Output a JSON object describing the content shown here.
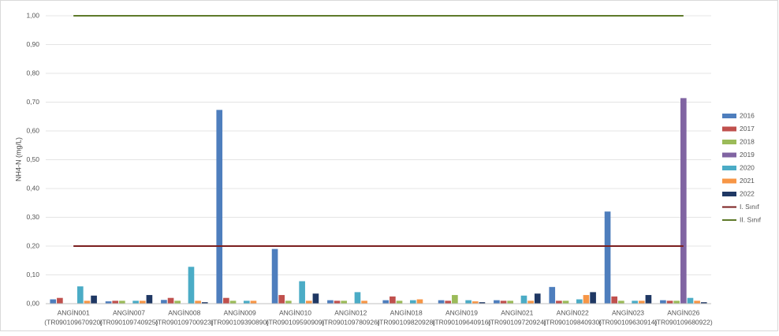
{
  "chart_data": {
    "type": "bar",
    "y_label": "NH4-N (mg/L)",
    "categories": [
      "ANGİN001",
      "ANGİN007",
      "ANGİN008",
      "ANGİN009",
      "ANGİN010",
      "ANGİN012",
      "ANGİN018",
      "ANGİN019",
      "ANGİN021",
      "ANGİN022",
      "ANGİN023",
      "ANGİN026"
    ],
    "category_codes": [
      "(TR090109670920)",
      "(TR090109740925)",
      "(TR090109700923)",
      "(TR090109390890)",
      "(TR090109590909)",
      "(TR090109780926)",
      "(TR090109820928)",
      "(TR090109640916)",
      "(TR090109720924)",
      "(TR090109840930)",
      "(TR090109630914)",
      "(TR090109680922)"
    ],
    "series": [
      {
        "name": "2016",
        "color": "#4e7ebd",
        "values": [
          0.015,
          0.008,
          0.013,
          0.673,
          0.19,
          0.012,
          0.012,
          0.012,
          0.012,
          0.058,
          0.32,
          0.012
        ]
      },
      {
        "name": "2017",
        "color": "#c0504d",
        "values": [
          0.02,
          0.01,
          0.02,
          0.02,
          0.03,
          0.01,
          0.025,
          0.01,
          0.01,
          0.01,
          0.025,
          0.01
        ]
      },
      {
        "name": "2018",
        "color": "#9bbb59",
        "values": [
          null,
          0.01,
          0.01,
          0.01,
          0.01,
          0.01,
          0.01,
          0.03,
          0.01,
          0.01,
          0.01,
          0.01
        ]
      },
      {
        "name": "2019",
        "color": "#8064a2",
        "values": [
          null,
          null,
          null,
          null,
          null,
          null,
          null,
          null,
          null,
          null,
          null,
          0.714
        ]
      },
      {
        "name": "2020",
        "color": "#4bacc6",
        "values": [
          0.06,
          0.01,
          0.128,
          0.01,
          0.078,
          0.04,
          0.012,
          0.012,
          0.028,
          0.015,
          0.01,
          0.02
        ]
      },
      {
        "name": "2021",
        "color": "#f79646",
        "values": [
          0.01,
          0.01,
          0.01,
          0.01,
          0.01,
          0.01,
          0.015,
          0.008,
          0.01,
          0.03,
          0.01,
          0.01
        ]
      },
      {
        "name": "2022",
        "color": "#1f3864",
        "values": [
          0.028,
          0.03,
          0.005,
          null,
          0.035,
          null,
          null,
          0.005,
          0.035,
          0.04,
          0.03,
          0.005
        ]
      }
    ],
    "reference_lines": [
      {
        "name": "I. Sınıf",
        "color": "#7b1f1f",
        "value": 0.2
      },
      {
        "name": "II. Sınıf",
        "color": "#5e7a2a",
        "value": 1.0
      }
    ],
    "ylim": [
      0,
      1.0
    ],
    "yticks": [
      {
        "value": 0,
        "label": "0,00"
      },
      {
        "value": 0.1,
        "label": "0,10"
      },
      {
        "value": 0.2,
        "label": "0,20"
      },
      {
        "value": 0.3,
        "label": "0,30"
      },
      {
        "value": 0.4,
        "label": "0,40"
      },
      {
        "value": 0.5,
        "label": "0,50"
      },
      {
        "value": 0.6,
        "label": "0,60"
      },
      {
        "value": 0.7,
        "label": "0,70"
      },
      {
        "value": 0.8,
        "label": "0,80"
      },
      {
        "value": 0.9,
        "label": "0,90"
      },
      {
        "value": 1.0,
        "label": "1,00"
      }
    ],
    "grid": true,
    "legend": "right"
  }
}
